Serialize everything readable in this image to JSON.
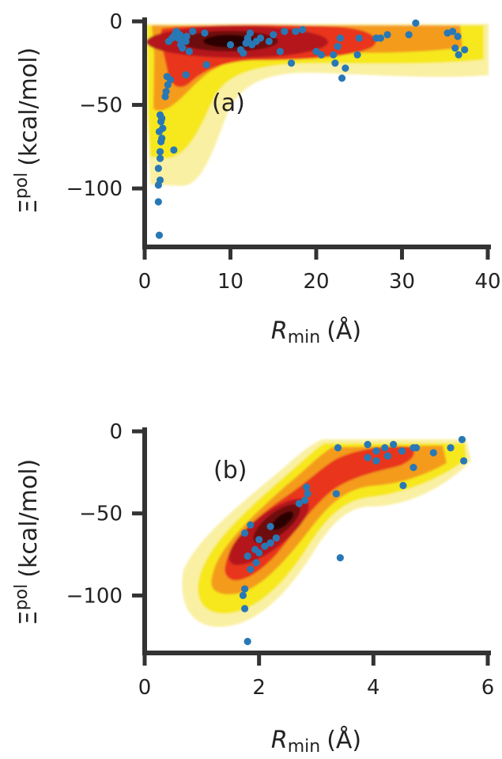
{
  "chart_data": [
    {
      "type": "scatter",
      "panel_label": "(a)",
      "xlabel_main": "R",
      "xlabel_sub": "min",
      "xlabel_unit": "(Å)",
      "ylabel_main": "Ξ",
      "ylabel_sup": "pol",
      "ylabel_unit": "(kcal/mol)",
      "xlim": [
        0,
        40
      ],
      "ylim": [
        -135,
        0
      ],
      "xticks": [
        0,
        10,
        20,
        30,
        40
      ],
      "yticks": [
        0,
        -50,
        -100
      ],
      "xtick_labels": [
        "0",
        "10",
        "20",
        "30",
        "40"
      ],
      "ytick_labels": [
        "0",
        "−50",
        "−100"
      ],
      "grid": false,
      "overlay": "kernel density contours (pale yellow → yellow → orange → red → dark red → black)",
      "colors": {
        "points": "#2878b5",
        "levels": [
          "#faf0a3",
          "#f6e81a",
          "#f49b1a",
          "#e8361c",
          "#b5161a",
          "#6e0f10",
          "#2a0605"
        ]
      },
      "points": [
        [
          1.7,
          -128
        ],
        [
          1.6,
          -108
        ],
        [
          1.6,
          -98
        ],
        [
          1.8,
          -95
        ],
        [
          1.6,
          -88
        ],
        [
          1.8,
          -82
        ],
        [
          1.8,
          -78
        ],
        [
          1.9,
          -72
        ],
        [
          2.0,
          -70
        ],
        [
          1.7,
          -66
        ],
        [
          2.1,
          -64
        ],
        [
          1.9,
          -60
        ],
        [
          1.8,
          -56
        ],
        [
          2.0,
          -58
        ],
        [
          2.4,
          -45
        ],
        [
          2.5,
          -42
        ],
        [
          2.7,
          -38
        ],
        [
          2.6,
          -33
        ],
        [
          3.0,
          -35
        ],
        [
          3.4,
          -77
        ],
        [
          2.8,
          -12
        ],
        [
          3.2,
          -10
        ],
        [
          3.5,
          -8
        ],
        [
          3.7,
          -6
        ],
        [
          3.9,
          -10
        ],
        [
          4.1,
          -8
        ],
        [
          4.3,
          -12
        ],
        [
          4.2,
          -14
        ],
        [
          4.4,
          -16
        ],
        [
          4.6,
          -10
        ],
        [
          4.8,
          -12
        ],
        [
          4.9,
          -9
        ],
        [
          5.2,
          -18
        ],
        [
          5.6,
          -6
        ],
        [
          4.8,
          -32
        ],
        [
          7.0,
          -7
        ],
        [
          7.2,
          -26
        ],
        [
          10.0,
          -14
        ],
        [
          11.2,
          -17
        ],
        [
          11.5,
          -19
        ],
        [
          11.8,
          -13
        ],
        [
          12.0,
          -10
        ],
        [
          12.1,
          -12
        ],
        [
          12.3,
          -7
        ],
        [
          12.5,
          -14
        ],
        [
          13.0,
          -12
        ],
        [
          13.5,
          -10
        ],
        [
          14.5,
          -12
        ],
        [
          15.0,
          -8
        ],
        [
          15.8,
          -18
        ],
        [
          16.3,
          -6
        ],
        [
          17.1,
          -25
        ],
        [
          17.6,
          -6
        ],
        [
          18.4,
          -5
        ],
        [
          20.0,
          -18
        ],
        [
          20.6,
          -20
        ],
        [
          22.0,
          -20
        ],
        [
          22.2,
          -25
        ],
        [
          22.5,
          -15
        ],
        [
          22.8,
          -10
        ],
        [
          23.0,
          -34
        ],
        [
          23.4,
          -28
        ],
        [
          24.8,
          -20
        ],
        [
          25.0,
          -10
        ],
        [
          27.0,
          -10
        ],
        [
          27.5,
          -10
        ],
        [
          28.3,
          -8
        ],
        [
          30.8,
          -8
        ],
        [
          31.6,
          -1
        ],
        [
          35.3,
          -7
        ],
        [
          35.9,
          -6
        ],
        [
          36.2,
          -16
        ],
        [
          36.5,
          -9
        ],
        [
          36.6,
          -20
        ],
        [
          37.3,
          -17
        ]
      ]
    },
    {
      "type": "scatter",
      "panel_label": "(b)",
      "xlabel_main": "R",
      "xlabel_sub": "min",
      "xlabel_unit": "(Å)",
      "ylabel_main": "Ξ",
      "ylabel_sup": "pol",
      "ylabel_unit": "(kcal/mol)",
      "xlim": [
        0,
        6
      ],
      "ylim": [
        -135,
        0
      ],
      "xticks": [
        0,
        2,
        4,
        6
      ],
      "yticks": [
        0,
        -50,
        -100
      ],
      "xtick_labels": [
        "0",
        "2",
        "4",
        "6"
      ],
      "ytick_labels": [
        "0",
        "−50",
        "−100"
      ],
      "grid": false,
      "overlay": "kernel density contours (pale yellow → yellow → orange → red → dark red → black)",
      "colors": {
        "points": "#2878b5",
        "levels": [
          "#faf0a3",
          "#f6e81a",
          "#f49b1a",
          "#e8361c",
          "#b5161a",
          "#6e0f10",
          "#2a0605"
        ]
      },
      "points": [
        [
          1.8,
          -128
        ],
        [
          1.75,
          -108
        ],
        [
          1.72,
          -100
        ],
        [
          1.75,
          -96
        ],
        [
          1.85,
          -84
        ],
        [
          1.95,
          -80
        ],
        [
          1.8,
          -76
        ],
        [
          1.93,
          -72
        ],
        [
          2.0,
          -74
        ],
        [
          2.1,
          -70
        ],
        [
          2.0,
          -66
        ],
        [
          2.2,
          -68
        ],
        [
          2.3,
          -65
        ],
        [
          1.75,
          -62
        ],
        [
          1.85,
          -57
        ],
        [
          2.2,
          -58
        ],
        [
          2.7,
          -44
        ],
        [
          2.8,
          -42
        ],
        [
          2.85,
          -38
        ],
        [
          2.83,
          -34
        ],
        [
          3.35,
          -38
        ],
        [
          3.42,
          -77
        ],
        [
          3.38,
          -10
        ],
        [
          3.9,
          -8
        ],
        [
          3.9,
          -16
        ],
        [
          4.05,
          -12
        ],
        [
          4.05,
          -18
        ],
        [
          4.2,
          -10
        ],
        [
          4.25,
          -15
        ],
        [
          4.35,
          -8
        ],
        [
          4.5,
          -12
        ],
        [
          4.52,
          -33
        ],
        [
          4.7,
          -22
        ],
        [
          4.7,
          -10
        ],
        [
          4.75,
          -10
        ],
        [
          5.05,
          -13
        ],
        [
          5.35,
          -10
        ],
        [
          5.55,
          -5
        ],
        [
          5.58,
          -18
        ]
      ]
    }
  ]
}
